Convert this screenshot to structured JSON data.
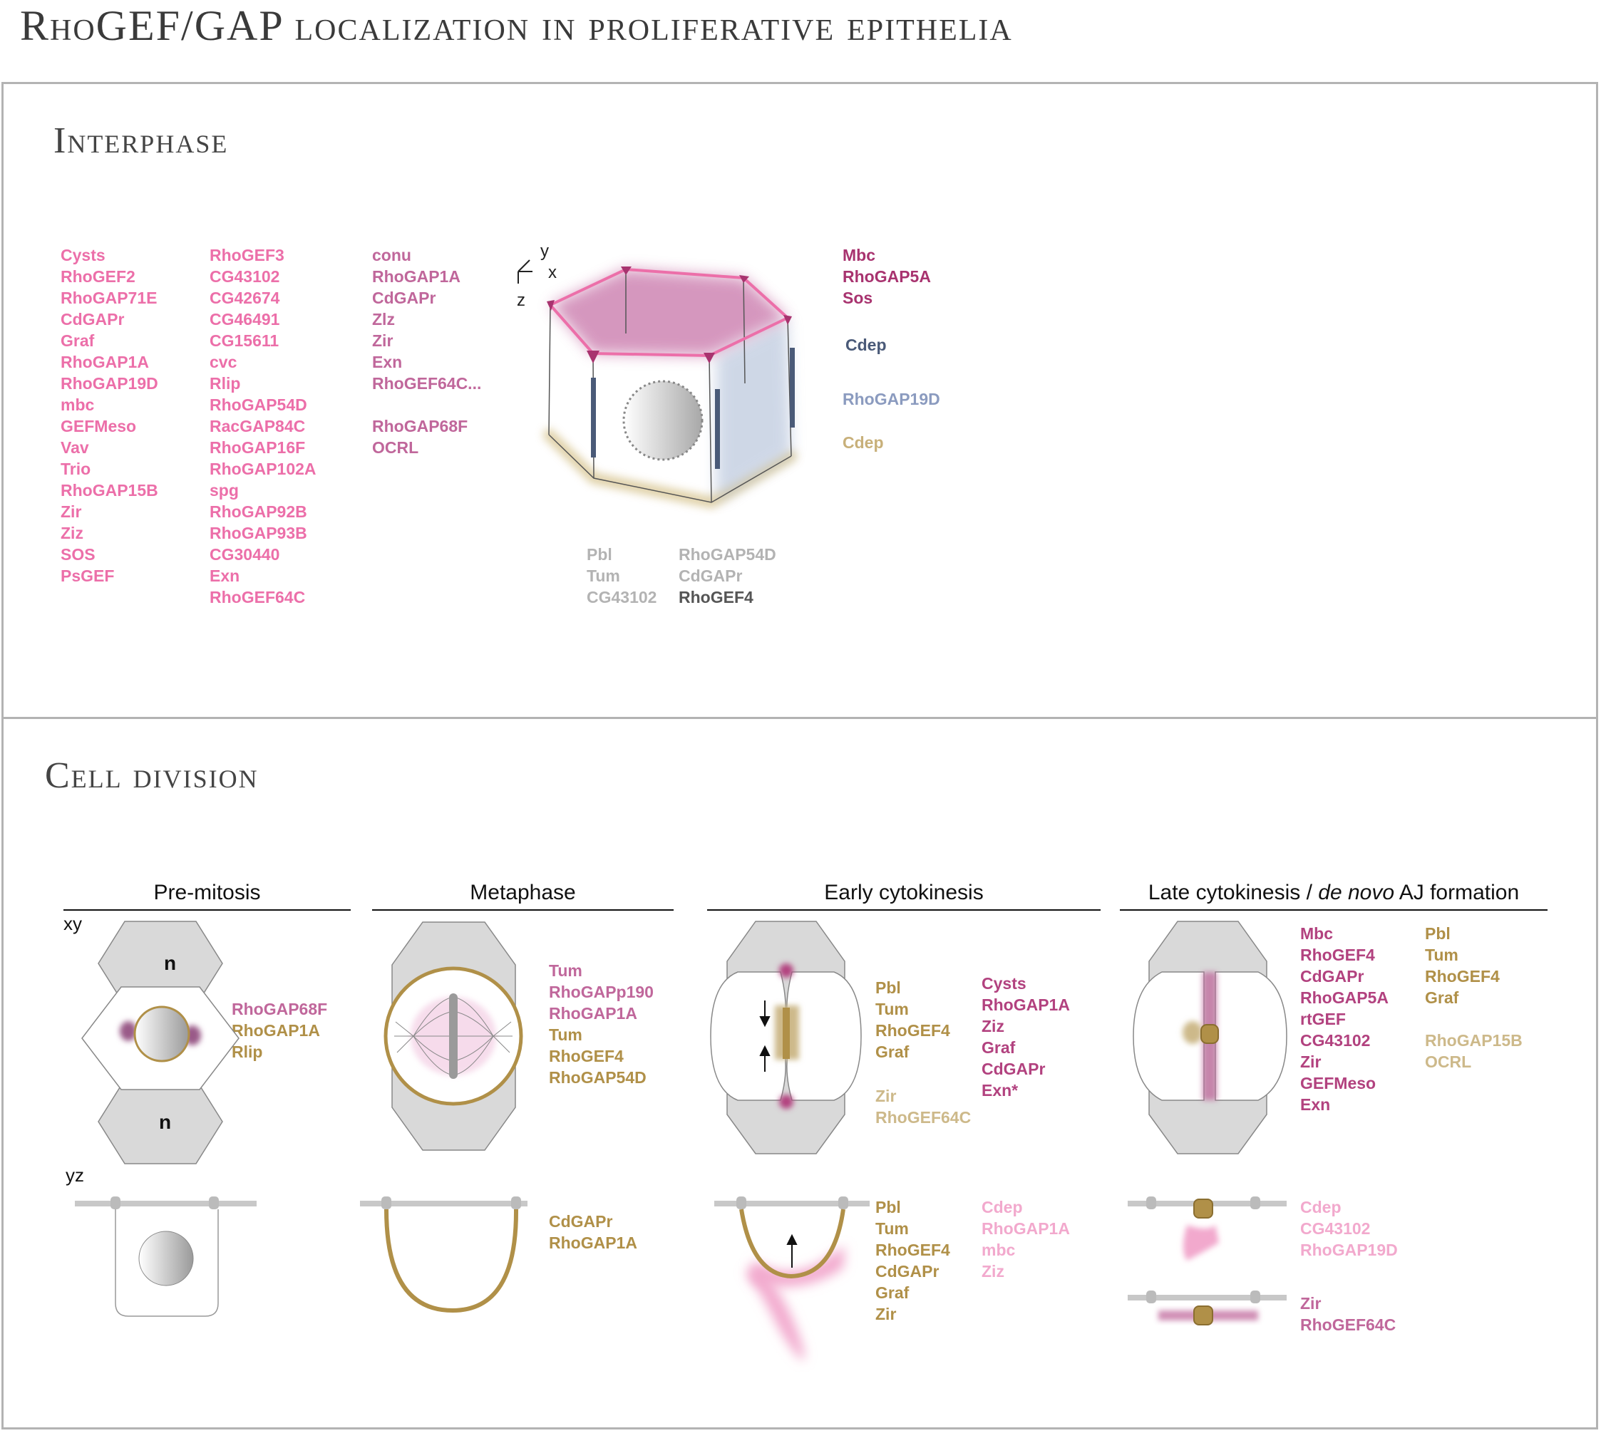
{
  "title": "RhoGEF/GAP localization in proliferative epithelia",
  "interphase": {
    "title": "Interphase",
    "axes": {
      "y": "y",
      "x": "x",
      "z": "z"
    },
    "col1": {
      "color": "#ec6fa9",
      "items": [
        "Cysts",
        "RhoGEF2",
        "RhoGAP71E",
        "CdGAPr",
        "Graf",
        "RhoGAP1A",
        "RhoGAP19D",
        "mbc",
        "GEFMeso",
        "Vav",
        "Trio",
        "RhoGAP15B",
        "Zir",
        "Ziz",
        "SOS",
        "PsGEF"
      ]
    },
    "col2": {
      "color": "#ec6fa9",
      "items": [
        "RhoGEF3",
        "CG43102",
        "CG42674",
        "CG46491",
        "CG15611",
        "cvc",
        "Rlip",
        "RhoGAP54D",
        "RacGAP84C",
        "RhoGAP16F",
        "RhoGAP102A",
        "spg",
        "RhoGAP92B",
        "RhoGAP93B",
        "CG30440",
        "Exn",
        "RhoGEF64C"
      ]
    },
    "col3a": {
      "color": "#c0679b",
      "items": [
        "conu",
        "RhoGAP1A",
        "CdGAPr",
        "Zlz",
        "Zir",
        "Exn",
        "RhoGEF64C..."
      ]
    },
    "col3b": {
      "color": "#c0679b",
      "items": [
        "RhoGAP68F",
        "OCRL"
      ]
    },
    "right": [
      {
        "color": "#a8336f",
        "items": [
          "Mbc",
          "RhoGAP5A",
          "Sos"
        ]
      },
      {
        "color": "#4a5a78",
        "items": [
          "Cdep"
        ]
      },
      {
        "color": "#8b9bbf",
        "items": [
          "RhoGAP19D"
        ]
      },
      {
        "color": "#c8b07a",
        "items": [
          "Cdep"
        ]
      }
    ],
    "bottom_left": {
      "color": "#b3b3b3",
      "items": [
        "Pbl",
        "Tum",
        "CG43102"
      ]
    },
    "bottom_right_light": {
      "color": "#b3b3b3",
      "items": [
        "RhoGAP54D",
        "CdGAPr"
      ]
    },
    "bottom_right_dark": {
      "color": "#555555",
      "items": [
        "RhoGEF4"
      ]
    }
  },
  "division": {
    "title": "Cell division",
    "view_xy": "xy",
    "view_yz": "yz",
    "stages": {
      "premitosis": "Pre-mitosis",
      "metaphase": "Metaphase",
      "early": "Early cytokinesis",
      "late_a": "Late cytokinesis / ",
      "late_b": "de novo",
      "late_c": " AJ formation"
    },
    "nucleus_label": "n",
    "colors": {
      "gold": "#b09048",
      "gold_light": "#cdb98a",
      "pink": "#c0679b",
      "pink_light": "#f2a9cd",
      "magenta": "#b2427f"
    },
    "premitosis_xy": {
      "pink": [
        "RhoGAP68F"
      ],
      "gold": [
        "RhoGAP1A",
        "Rlip"
      ]
    },
    "metaphase_xy": {
      "pink": [
        "Tum",
        "RhoGAPp190",
        "RhoGAP1A"
      ],
      "gold": [
        "Tum",
        "RhoGEF4",
        "RhoGAP54D"
      ]
    },
    "metaphase_yz": {
      "gold": [
        "CdGAPr",
        "RhoGAP1A"
      ]
    },
    "early_xy": {
      "gold": [
        "Pbl",
        "Tum",
        "RhoGEF4",
        "Graf"
      ],
      "gold_light": [
        "Zir",
        "RhoGEF64C"
      ],
      "magenta": [
        "Cysts",
        "RhoGAP1A",
        "Ziz",
        "Graf",
        "CdGAPr",
        "Exn*"
      ]
    },
    "early_yz": {
      "gold": [
        "Pbl",
        "Tum",
        "RhoGEF4",
        "CdGAPr",
        "Graf",
        "Zir"
      ],
      "pink_light": [
        "Cdep",
        "RhoGAP1A",
        "mbc",
        "Ziz"
      ]
    },
    "late_xy": {
      "magenta": [
        "Mbc",
        "RhoGEF4",
        "CdGAPr",
        "RhoGAP5A",
        "rtGEF",
        "CG43102",
        "Zir",
        "GEFMeso",
        "Exn"
      ],
      "gold": [
        "Pbl",
        "Tum",
        "RhoGEF4",
        "Graf"
      ],
      "gold_light": [
        "RhoGAP15B",
        "OCRL"
      ]
    },
    "late_yz1": {
      "pink_light": [
        "Cdep",
        "CG43102",
        "RhoGAP19D"
      ]
    },
    "late_yz2": {
      "pink": [
        "Zir",
        "RhoGEF64C"
      ]
    }
  }
}
